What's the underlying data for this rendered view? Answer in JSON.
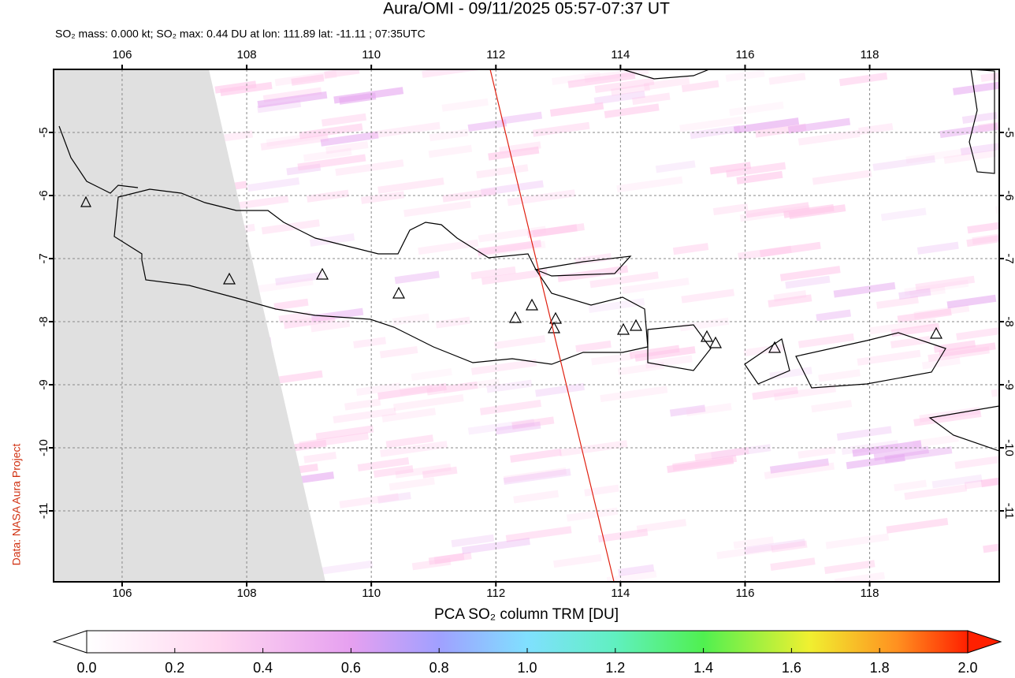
{
  "title": "Aura/OMI - 09/11/2025 05:57-07:37 UT",
  "subtitle": "SO₂ mass: 0.000 kt; SO₂ max: 0.44 DU at lon: 111.89 lat: -11.11 ; 07:35UTC",
  "credit": "Data: NASA Aura Project",
  "map": {
    "lonlim": [
      104.9,
      120.08
    ],
    "latlim": [
      -4.0,
      -12.125
    ],
    "lonticks": [
      106,
      108,
      110,
      112,
      114,
      116,
      118
    ],
    "latticks": [
      -5,
      -6,
      -7,
      -8,
      -9,
      -10,
      -11
    ]
  },
  "colorbar": {
    "label": "PCA SO₂ column TRM [DU]",
    "lim": [
      0,
      2
    ],
    "ticks": [
      {
        "value": 0,
        "label": "0.0"
      },
      0.2,
      0.4,
      0.6,
      0.8,
      {
        "value": 1,
        "label": "1.0"
      },
      1.2,
      1.4,
      1.6,
      1.8,
      {
        "value": 2,
        "label": "2.0"
      }
    ]
  }
}
